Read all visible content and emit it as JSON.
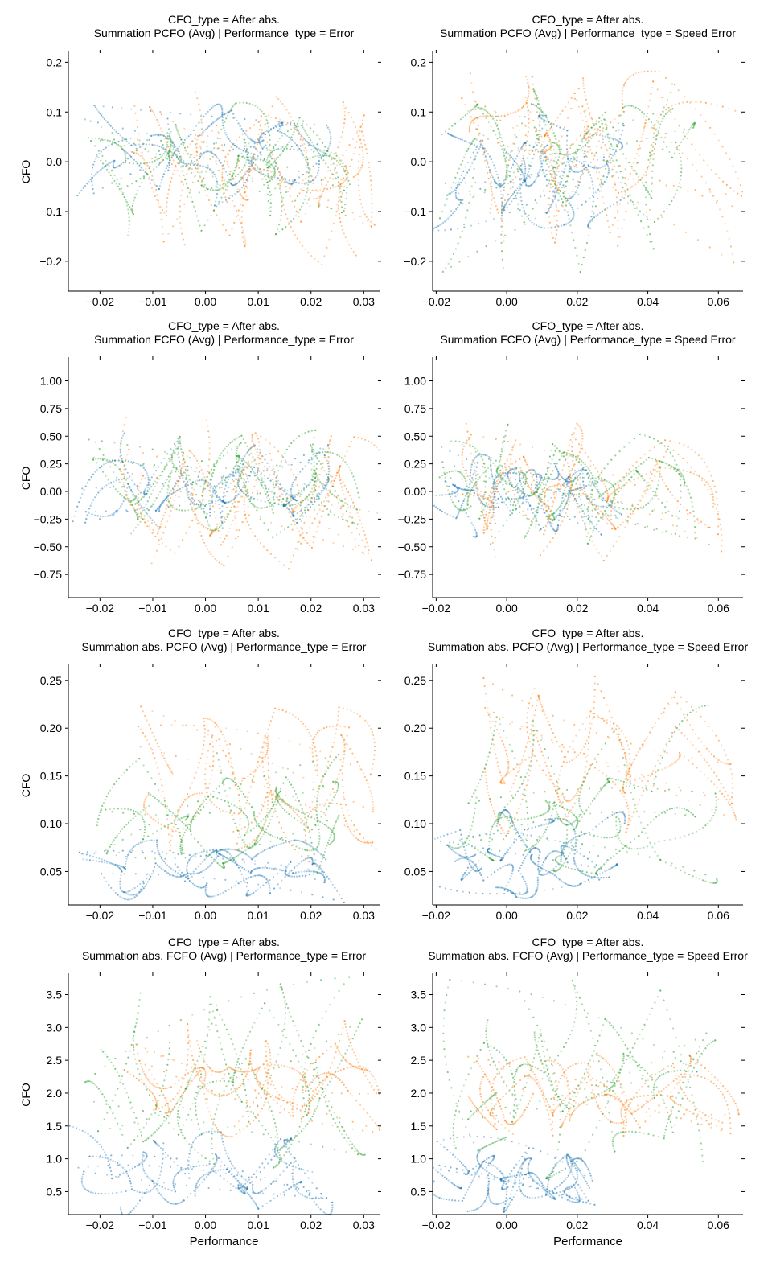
{
  "chart_data": [
    {
      "type": "scatter",
      "title": "CFO_type = After abs.\nSummation PCFO (Avg) | Performance_type = Error",
      "ylabel": "CFO",
      "xlabel": "",
      "xlim": [
        -0.026,
        0.033
      ],
      "ylim": [
        -0.26,
        0.22
      ],
      "xticks": [
        -0.02,
        -0.01,
        0.0,
        0.01,
        0.02,
        0.03
      ],
      "xtick_labels": [
        "−0.02",
        "−0.01",
        "0.00",
        "0.01",
        "0.02",
        "0.03"
      ],
      "yticks": [
        -0.2,
        -0.1,
        0.0,
        0.1,
        0.2
      ],
      "ytick_labels": [
        "−0.2",
        "−0.1",
        "0.0",
        "0.1",
        "0.2"
      ],
      "series_colors": [
        "#1f77b4",
        "#ff7f0e",
        "#2ca02c"
      ],
      "series": [
        {
          "x": [
            -0.022,
            -0.015,
            -0.008,
            -0.002,
            0.004,
            0.01,
            0.016,
            0.022
          ],
          "y": [
            -0.04,
            0.03,
            0.08,
            0.02,
            -0.06,
            0.05,
            0.09,
            0.01
          ]
        },
        {
          "x": [
            -0.012,
            -0.006,
            0.0,
            0.006,
            0.012,
            0.02,
            0.028,
            0.03
          ],
          "y": [
            0.12,
            -0.1,
            0.06,
            -0.14,
            0.1,
            -0.05,
            0.0,
            -0.18
          ]
        },
        {
          "x": [
            -0.02,
            -0.013,
            -0.005,
            0.001,
            0.008,
            0.014,
            0.02,
            0.028
          ],
          "y": [
            0.04,
            -0.08,
            0.1,
            -0.03,
            0.07,
            -0.12,
            0.03,
            -0.02
          ]
        }
      ]
    },
    {
      "type": "scatter",
      "title": "CFO_type = After abs.\nSummation PCFO (Avg) | Performance_type = Speed Error",
      "ylabel": "",
      "xlabel": "",
      "xlim": [
        -0.021,
        0.067
      ],
      "ylim": [
        -0.26,
        0.22
      ],
      "xticks": [
        -0.02,
        0.0,
        0.02,
        0.04,
        0.06
      ],
      "xtick_labels": [
        "−0.02",
        "0.00",
        "0.02",
        "0.04",
        "0.06"
      ],
      "yticks": [
        -0.2,
        -0.1,
        0.0,
        0.1,
        0.2
      ],
      "ytick_labels": [
        "−0.2",
        "−0.1",
        "0.0",
        "0.1",
        "0.2"
      ],
      "series_colors": [
        "#1f77b4",
        "#ff7f0e",
        "#2ca02c"
      ],
      "series": [
        {
          "x": [
            -0.02,
            -0.01,
            -0.004,
            0.002,
            0.008,
            0.014,
            0.02,
            0.03
          ],
          "y": [
            0.08,
            0.05,
            -0.02,
            0.06,
            -0.08,
            0.03,
            -0.11,
            -0.05
          ]
        },
        {
          "x": [
            -0.012,
            -0.004,
            0.004,
            0.012,
            0.02,
            0.03,
            0.04,
            0.065
          ],
          "y": [
            0.16,
            -0.12,
            0.1,
            -0.18,
            0.15,
            -0.08,
            0.05,
            0.08
          ]
        },
        {
          "x": [
            -0.016,
            -0.006,
            0.002,
            0.01,
            0.018,
            0.03,
            0.044,
            0.05
          ],
          "y": [
            0.03,
            0.09,
            -0.06,
            0.12,
            -0.1,
            0.06,
            -0.2,
            0.13
          ]
        }
      ]
    },
    {
      "type": "scatter",
      "title": "CFO_type = After abs.\nSummation FCFO (Avg) | Performance_type = Error",
      "ylabel": "CFO",
      "xlabel": "",
      "xlim": [
        -0.026,
        0.033
      ],
      "ylim": [
        -0.96,
        1.2
      ],
      "xticks": [
        -0.02,
        -0.01,
        0.0,
        0.01,
        0.02,
        0.03
      ],
      "xtick_labels": [
        "−0.02",
        "−0.01",
        "0.00",
        "0.01",
        "0.02",
        "0.03"
      ],
      "yticks": [
        -0.75,
        -0.5,
        -0.25,
        0.0,
        0.25,
        0.5,
        0.75,
        1.0
      ],
      "ytick_labels": [
        "−0.75",
        "−0.50",
        "−0.25",
        "0.00",
        "0.25",
        "0.50",
        "0.75",
        "1.00"
      ],
      "series_colors": [
        "#1f77b4",
        "#ff7f0e",
        "#2ca02c"
      ],
      "series": [
        {
          "x": [
            -0.024,
            -0.016,
            -0.01,
            -0.004,
            0.002,
            0.008,
            0.016,
            0.022
          ],
          "y": [
            -0.35,
            0.2,
            -0.1,
            0.4,
            -0.3,
            0.1,
            -0.2,
            0.05
          ]
        },
        {
          "x": [
            -0.014,
            -0.008,
            -0.002,
            0.004,
            0.01,
            0.018,
            0.026,
            0.032
          ],
          "y": [
            0.6,
            -0.45,
            0.3,
            -0.55,
            0.45,
            -0.25,
            0.1,
            -0.6
          ]
        },
        {
          "x": [
            -0.022,
            -0.014,
            -0.006,
            0.0,
            0.006,
            0.012,
            0.02,
            0.028
          ],
          "y": [
            0.4,
            -0.3,
            0.45,
            -0.4,
            0.2,
            -0.15,
            0.3,
            -0.1
          ]
        }
      ]
    },
    {
      "type": "scatter",
      "title": "CFO_type = After abs.\nSummation FCFO (Avg) | Performance_type = Speed Error",
      "ylabel": "",
      "xlabel": "",
      "xlim": [
        -0.021,
        0.067
      ],
      "ylim": [
        -0.96,
        1.2
      ],
      "xticks": [
        -0.02,
        0.0,
        0.02,
        0.04,
        0.06
      ],
      "xtick_labels": [
        "−0.02",
        "0.00",
        "0.02",
        "0.04",
        "0.06"
      ],
      "yticks": [
        -0.75,
        -0.5,
        -0.25,
        0.0,
        0.25,
        0.5,
        0.75,
        1.0
      ],
      "ytick_labels": [
        "−0.75",
        "−0.50",
        "−0.25",
        "0.00",
        "0.25",
        "0.50",
        "0.75",
        "1.00"
      ],
      "series_colors": [
        "#1f77b4",
        "#ff7f0e",
        "#2ca02c"
      ],
      "series": [
        {
          "x": [
            -0.02,
            -0.012,
            -0.006,
            0.0,
            0.006,
            0.012,
            0.02,
            0.03
          ],
          "y": [
            0.1,
            -0.2,
            0.3,
            -0.1,
            0.2,
            -0.3,
            0.05,
            0.15
          ]
        },
        {
          "x": [
            -0.01,
            -0.004,
            0.004,
            0.012,
            0.02,
            0.03,
            0.045,
            0.06
          ],
          "y": [
            0.5,
            -0.45,
            0.35,
            -0.5,
            0.4,
            -0.2,
            0.1,
            -0.25
          ]
        },
        {
          "x": [
            -0.016,
            -0.008,
            0.0,
            0.008,
            0.016,
            0.026,
            0.04,
            0.05
          ],
          "y": [
            0.35,
            -0.35,
            0.5,
            -0.4,
            0.25,
            -0.15,
            0.2,
            -0.05
          ]
        }
      ]
    },
    {
      "type": "scatter",
      "title": "CFO_type = After abs.\nSummation abs. PCFO (Avg) | Performance_type = Error",
      "ylabel": "CFO",
      "xlabel": "",
      "xlim": [
        -0.026,
        0.033
      ],
      "ylim": [
        0.015,
        0.265
      ],
      "xticks": [
        -0.02,
        -0.01,
        0.0,
        0.01,
        0.02,
        0.03
      ],
      "xtick_labels": [
        "−0.02",
        "−0.01",
        "0.00",
        "0.01",
        "0.02",
        "0.03"
      ],
      "yticks": [
        0.05,
        0.1,
        0.15,
        0.2,
        0.25
      ],
      "ytick_labels": [
        "0.05",
        "0.10",
        "0.15",
        "0.20",
        "0.25"
      ],
      "series_colors": [
        "#1f77b4",
        "#ff7f0e",
        "#2ca02c"
      ],
      "series": [
        {
          "x": [
            -0.022,
            -0.014,
            -0.008,
            -0.002,
            0.004,
            0.01,
            0.018,
            0.024
          ],
          "y": [
            0.05,
            0.04,
            0.07,
            0.03,
            0.06,
            0.05,
            0.07,
            0.05
          ]
        },
        {
          "x": [
            -0.012,
            -0.006,
            0.0,
            0.006,
            0.012,
            0.02,
            0.026,
            0.032
          ],
          "y": [
            0.12,
            0.08,
            0.18,
            0.1,
            0.21,
            0.14,
            0.19,
            0.06
          ]
        },
        {
          "x": [
            -0.02,
            -0.012,
            -0.004,
            0.002,
            0.008,
            0.014,
            0.02,
            0.024
          ],
          "y": [
            0.09,
            0.16,
            0.06,
            0.12,
            0.08,
            0.13,
            0.1,
            0.07
          ]
        }
      ]
    },
    {
      "type": "scatter",
      "title": "CFO_type = After abs.\nSummation abs. PCFO (Avg) | Performance_type = Speed Error",
      "ylabel": "",
      "xlabel": "",
      "xlim": [
        -0.021,
        0.067
      ],
      "ylim": [
        0.015,
        0.265
      ],
      "xticks": [
        -0.02,
        0.0,
        0.02,
        0.04,
        0.06
      ],
      "xtick_labels": [
        "−0.02",
        "0.00",
        "0.02",
        "0.04",
        "0.06"
      ],
      "yticks": [
        0.05,
        0.1,
        0.15,
        0.2,
        0.25
      ],
      "ytick_labels": [
        "0.05",
        "0.10",
        "0.15",
        "0.20",
        "0.25"
      ],
      "series_colors": [
        "#1f77b4",
        "#ff7f0e",
        "#2ca02c"
      ],
      "series": [
        {
          "x": [
            -0.018,
            -0.01,
            -0.004,
            0.0,
            0.006,
            0.012,
            0.02,
            0.03
          ],
          "y": [
            0.06,
            0.04,
            0.03,
            0.05,
            0.07,
            0.06,
            0.09,
            0.1
          ]
        },
        {
          "x": [
            -0.006,
            0.0,
            0.008,
            0.016,
            0.024,
            0.034,
            0.048,
            0.064
          ],
          "y": [
            0.16,
            0.09,
            0.2,
            0.12,
            0.22,
            0.15,
            0.24,
            0.13
          ]
        },
        {
          "x": [
            -0.014,
            -0.006,
            0.002,
            0.01,
            0.018,
            0.028,
            0.04,
            0.056
          ],
          "y": [
            0.07,
            0.05,
            0.09,
            0.11,
            0.08,
            0.13,
            0.12,
            0.21
          ]
        }
      ]
    },
    {
      "type": "scatter",
      "title": "CFO_type = After abs.\nSummation abs. FCFO (Avg) | Performance_type = Error",
      "ylabel": "CFO",
      "xlabel": "Performance",
      "xlim": [
        -0.026,
        0.033
      ],
      "ylim": [
        0.15,
        3.8
      ],
      "xticks": [
        -0.02,
        -0.01,
        0.0,
        0.01,
        0.02,
        0.03
      ],
      "xtick_labels": [
        "−0.02",
        "−0.01",
        "0.00",
        "0.01",
        "0.02",
        "0.03"
      ],
      "yticks": [
        0.5,
        1.0,
        1.5,
        2.0,
        2.5,
        3.0,
        3.5
      ],
      "ytick_labels": [
        "0.5",
        "1.0",
        "1.5",
        "2.0",
        "2.5",
        "3.0",
        "3.5"
      ],
      "series_colors": [
        "#1f77b4",
        "#ff7f0e",
        "#2ca02c"
      ],
      "series": [
        {
          "x": [
            -0.024,
            -0.016,
            -0.01,
            -0.004,
            0.002,
            0.008,
            0.016,
            0.022
          ],
          "y": [
            1.4,
            0.6,
            1.0,
            0.4,
            0.8,
            0.5,
            1.2,
            0.7
          ]
        },
        {
          "x": [
            -0.014,
            -0.008,
            -0.002,
            0.004,
            0.01,
            0.018,
            0.026,
            0.032
          ],
          "y": [
            2.2,
            1.6,
            2.9,
            1.8,
            2.5,
            1.5,
            2.6,
            2.2
          ]
        },
        {
          "x": [
            -0.022,
            -0.014,
            -0.006,
            0.0,
            0.006,
            0.012,
            0.02,
            0.028
          ],
          "y": [
            2.6,
            1.2,
            2.0,
            3.2,
            1.5,
            3.6,
            2.0,
            1.0
          ]
        }
      ]
    },
    {
      "type": "scatter",
      "title": "CFO_type = After abs.\nSummation abs. FCFO (Avg) | Performance_type = Speed Error",
      "ylabel": "",
      "xlabel": "Performance",
      "xlim": [
        -0.021,
        0.067
      ],
      "ylim": [
        0.15,
        3.8
      ],
      "xticks": [
        -0.02,
        0.0,
        0.02,
        0.04,
        0.06
      ],
      "xtick_labels": [
        "−0.02",
        "0.00",
        "0.02",
        "0.04",
        "0.06"
      ],
      "yticks": [
        0.5,
        1.0,
        1.5,
        2.0,
        2.5,
        3.0,
        3.5
      ],
      "ytick_labels": [
        "0.5",
        "1.0",
        "1.5",
        "2.0",
        "2.5",
        "3.0",
        "3.5"
      ],
      "series_colors": [
        "#1f77b4",
        "#ff7f0e",
        "#2ca02c"
      ],
      "series": [
        {
          "x": [
            -0.018,
            -0.01,
            -0.004,
            0.002,
            0.008,
            0.014,
            0.02,
            0.026
          ],
          "y": [
            0.7,
            0.4,
            1.0,
            0.3,
            0.8,
            0.5,
            1.1,
            0.6
          ]
        },
        {
          "x": [
            -0.008,
            0.0,
            0.008,
            0.016,
            0.026,
            0.036,
            0.05,
            0.064
          ],
          "y": [
            2.0,
            1.5,
            2.6,
            1.7,
            2.3,
            1.4,
            2.5,
            1.6
          ]
        },
        {
          "x": [
            -0.014,
            -0.006,
            0.002,
            0.01,
            0.018,
            0.03,
            0.044,
            0.056
          ],
          "y": [
            1.2,
            2.8,
            1.6,
            3.0,
            1.8,
            2.2,
            3.6,
            1.0
          ]
        }
      ]
    }
  ]
}
